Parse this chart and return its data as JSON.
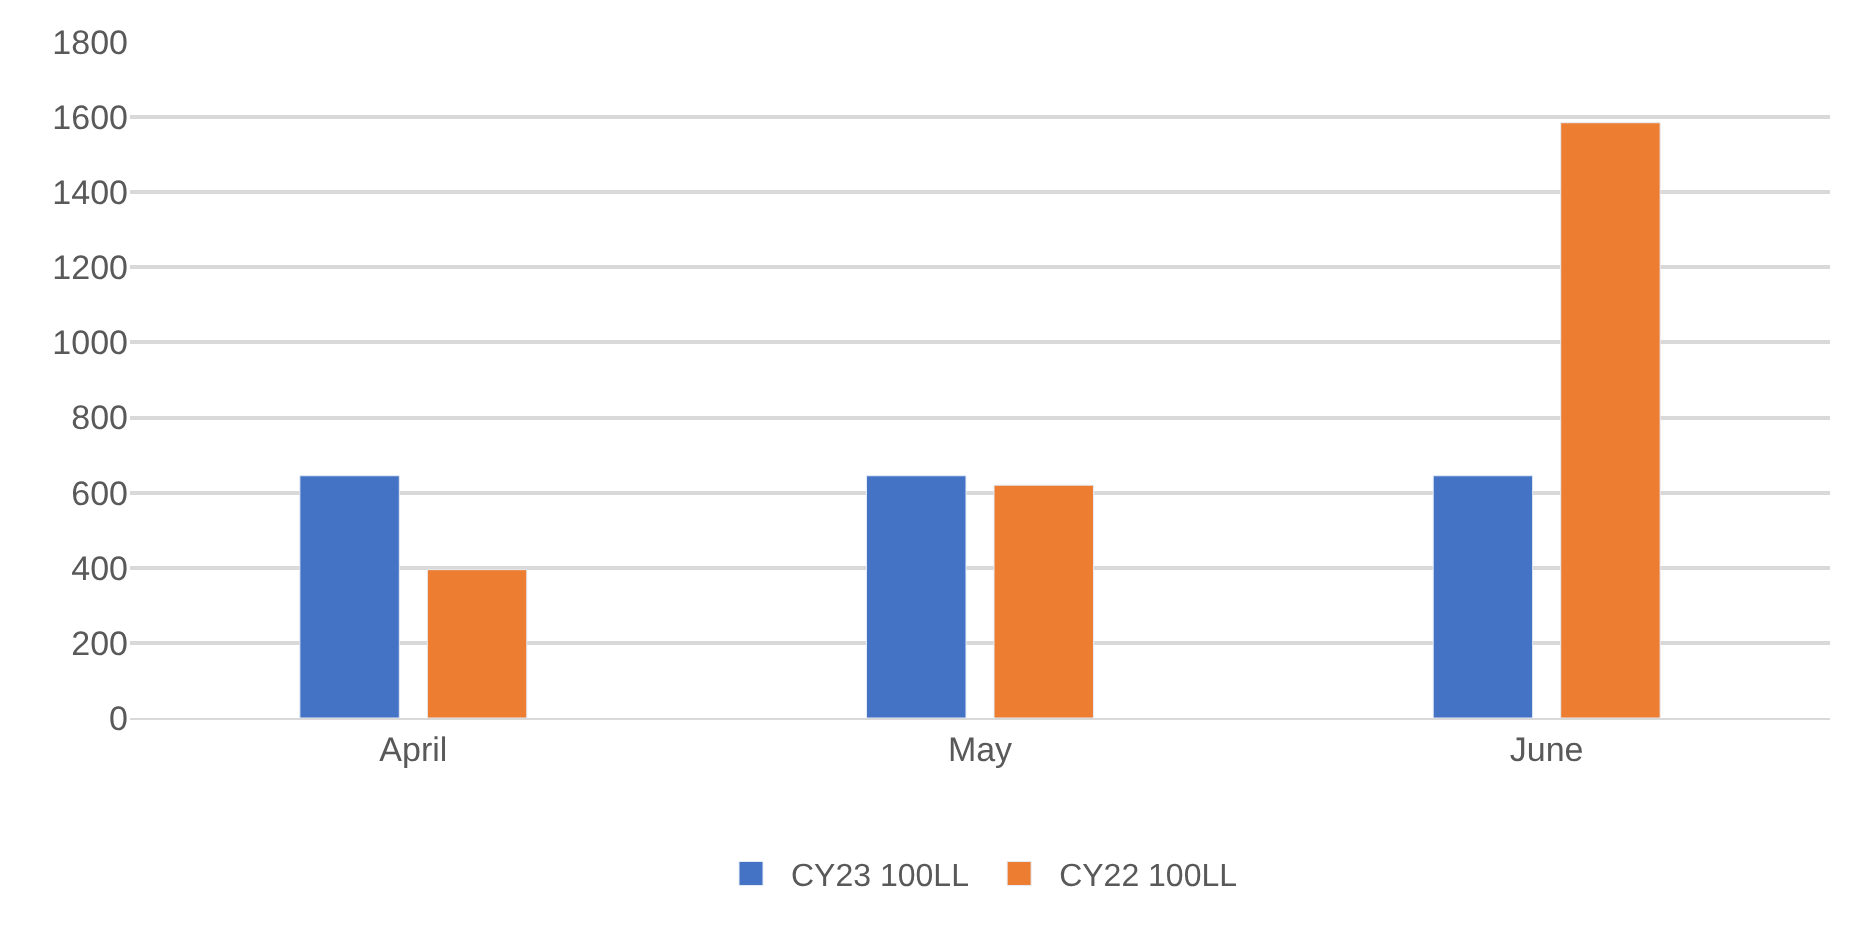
{
  "chart_data": {
    "type": "bar",
    "categories": [
      "April",
      "May",
      "June"
    ],
    "series": [
      {
        "name": "CY23 100LL",
        "color": "#4472c4",
        "values": [
          645,
          645,
          645
        ]
      },
      {
        "name": "CY22 100LL",
        "color": "#ed7d31",
        "values": [
          395,
          620,
          1585
        ]
      }
    ],
    "ylim": [
      0,
      1800
    ],
    "yticks": [
      0,
      200,
      400,
      600,
      800,
      1000,
      1200,
      1400,
      1600,
      1800
    ],
    "grid": "y",
    "legend": "bottom"
  }
}
